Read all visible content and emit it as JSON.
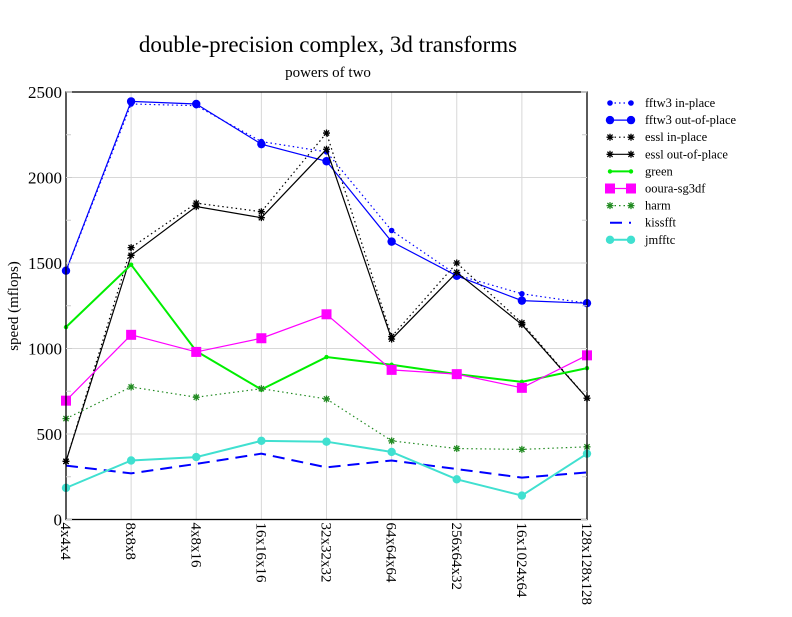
{
  "chart_data": {
    "type": "line",
    "title": "double-precision complex, 3d transforms",
    "subtitle": "powers of two",
    "xlabel": "",
    "ylabel": "speed (mflops)",
    "ylim": [
      0,
      2500
    ],
    "yticks": [
      0,
      500,
      1000,
      1500,
      2000,
      2500
    ],
    "grid": true,
    "legend_position": "right",
    "categories": [
      "4x4x4",
      "8x8x8",
      "4x8x16",
      "16x16x16",
      "32x32x32",
      "64x64x64",
      "256x64x32",
      "16x1024x64",
      "128x128x128"
    ],
    "series": [
      {
        "name": "fftw3 in-place",
        "color": "#0000ff",
        "dash": "dot",
        "marker": "smallcircle",
        "values": [
          1450,
          2430,
          2420,
          2210,
          2150,
          1690,
          1430,
          1320,
          1265
        ]
      },
      {
        "name": "fftw3 out-of-place",
        "color": "#0000ff",
        "dash": "solid",
        "marker": "circle",
        "values": [
          1455,
          2445,
          2430,
          2195,
          2095,
          1625,
          1425,
          1280,
          1265
        ]
      },
      {
        "name": "essl in-place",
        "color": "#000000",
        "dash": "dot",
        "marker": "star",
        "values": [
          340,
          1590,
          1850,
          1800,
          2260,
          1070,
          1500,
          1150,
          710
        ]
      },
      {
        "name": "essl out-of-place",
        "color": "#000000",
        "dash": "solid",
        "marker": "star",
        "values": [
          340,
          1545,
          1830,
          1765,
          2165,
          1055,
          1445,
          1140,
          710
        ]
      },
      {
        "name": "green",
        "color": "#00ee00",
        "dash": "solid",
        "marker": "dot",
        "values": [
          1125,
          1490,
          985,
          760,
          950,
          905,
          850,
          805,
          885
        ]
      },
      {
        "name": "ooura-sg3df",
        "color": "#ff00ff",
        "dash": "solid",
        "marker": "square",
        "values": [
          695,
          1080,
          980,
          1060,
          1200,
          875,
          850,
          770,
          960
        ]
      },
      {
        "name": "harm",
        "color": "#228b22",
        "dash": "dot",
        "marker": "star",
        "values": [
          590,
          775,
          715,
          765,
          705,
          460,
          415,
          410,
          425
        ]
      },
      {
        "name": "kissfft",
        "color": "#0000ff",
        "dash": "dash",
        "marker": "none",
        "values": [
          315,
          270,
          325,
          385,
          305,
          345,
          295,
          245,
          275
        ]
      },
      {
        "name": "jmfftc",
        "color": "#40e0d0",
        "dash": "solid",
        "marker": "circle",
        "values": [
          185,
          345,
          365,
          460,
          455,
          395,
          235,
          140,
          385
        ]
      }
    ]
  }
}
